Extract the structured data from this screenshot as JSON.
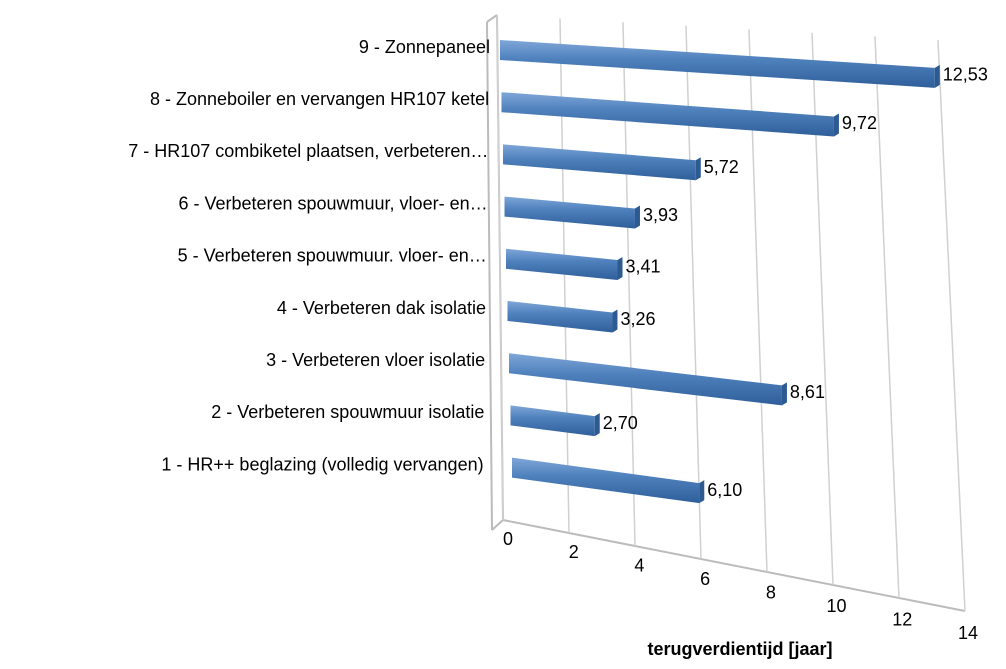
{
  "chart_data": {
    "type": "bar3d-horizontal",
    "categories": [
      "1 - HR++ beglazing (volledig vervangen)",
      "2 - Verbeteren spouwmuur isolatie",
      "3 - Verbeteren vloer isolatie",
      "4 - Verbeteren dak isolatie",
      "5 - Verbeteren spouwmuur. vloer- en…",
      "6 - Verbeteren spouwmuur, vloer- en…",
      "7 - HR107 combiketel plaatsen, verbeteren…",
      "8 - Zonneboiler en vervangen HR107 ketel",
      "9 - Zonnepaneel"
    ],
    "values": [
      6.1,
      2.7,
      8.61,
      3.26,
      3.41,
      3.93,
      5.72,
      9.72,
      12.53
    ],
    "value_labels": [
      "6,10",
      "2,70",
      "8,61",
      "3,26",
      "3,41",
      "3,93",
      "5,72",
      "9,72",
      "12,53"
    ],
    "color": "#4f81bd",
    "xlim": [
      0,
      14
    ],
    "xticks": [
      0,
      2,
      4,
      6,
      8,
      10,
      12,
      14
    ],
    "xlabel": "terugverdientijd [jaar]",
    "grid": true
  }
}
